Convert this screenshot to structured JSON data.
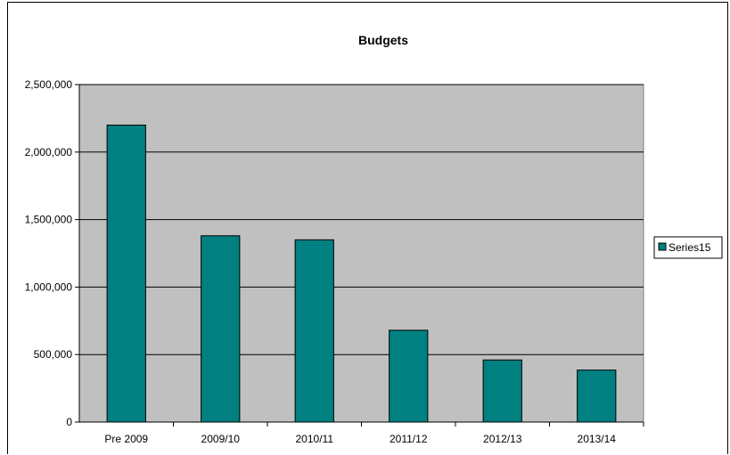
{
  "chart_data": {
    "type": "bar",
    "title": "Budgets",
    "xlabel": "",
    "ylabel": "",
    "categories": [
      "Pre 2009",
      "2009/10",
      "2010/11",
      "2011/12",
      "2012/13",
      "2013/14"
    ],
    "series": [
      {
        "name": "Series15",
        "values": [
          2200000,
          1380000,
          1350000,
          680000,
          460000,
          385000
        ]
      }
    ],
    "ylim": [
      0,
      2500000
    ],
    "yticks": [
      0,
      500000,
      1000000,
      1500000,
      2000000,
      2500000
    ],
    "ytick_labels": [
      "0",
      "500,000",
      "1,000,000",
      "1,500,000",
      "2,000,000",
      "2,500,000"
    ],
    "grid": true,
    "legend_position": "right",
    "colors": {
      "bar_fill": "#008080",
      "plot_background": "#c0c0c0",
      "gridline": "#000000"
    }
  }
}
